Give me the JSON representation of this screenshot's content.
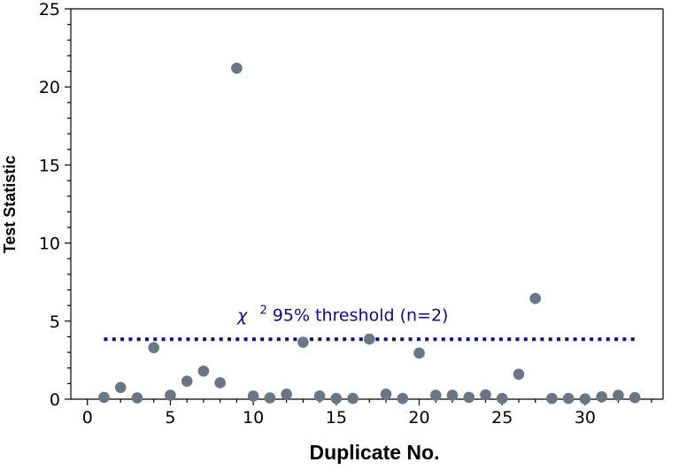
{
  "chart_data": {
    "type": "scatter",
    "title": "",
    "xlabel": "Duplicate No.",
    "ylabel": "Test Statistic",
    "xlim": [
      -1,
      34.7
    ],
    "ylim": [
      0,
      25
    ],
    "xticks": [
      0,
      5,
      10,
      15,
      20,
      25,
      30
    ],
    "yticks": [
      0,
      5,
      10,
      15,
      20,
      25
    ],
    "grid": false,
    "legend": "none",
    "point_color": "#6b7685",
    "threshold_color": "#0d0d80",
    "series": [
      {
        "x": [
          1,
          2,
          3,
          4,
          5,
          6,
          7,
          8,
          9,
          10,
          11,
          12,
          13,
          14,
          15,
          16,
          17,
          18,
          19,
          20,
          21,
          22,
          23,
          24,
          25,
          26,
          27,
          28,
          29,
          30,
          31,
          32,
          33
        ],
        "y": [
          0.12,
          0.75,
          0.08,
          3.3,
          0.25,
          1.15,
          1.8,
          1.05,
          21.2,
          0.2,
          0.08,
          0.32,
          3.65,
          0.2,
          0.05,
          0.05,
          3.85,
          0.32,
          0.05,
          2.95,
          0.25,
          0.25,
          0.12,
          0.28,
          0.05,
          1.6,
          6.45,
          0.05,
          0.05,
          0.02,
          0.15,
          0.25,
          0.1
        ]
      }
    ],
    "threshold": {
      "y": 3.84,
      "x_start": 1,
      "x_end": 33,
      "label_prefix": "χ",
      "label_superscript": "2",
      "label_suffix": " 95% threshold (n=2)"
    }
  }
}
